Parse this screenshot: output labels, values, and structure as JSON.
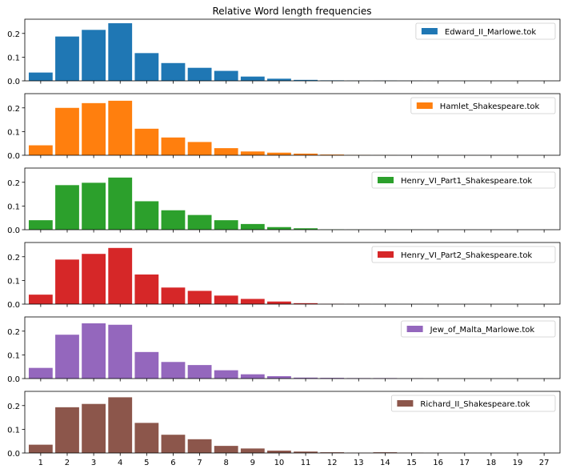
{
  "chart_data": {
    "type": "bar",
    "title": "Relative Word length frequencies",
    "categories": [
      "1",
      "2",
      "3",
      "4",
      "5",
      "6",
      "7",
      "8",
      "9",
      "10",
      "11",
      "12",
      "13",
      "14",
      "15",
      "16",
      "17",
      "18",
      "19",
      "27"
    ],
    "ylim": [
      0,
      0.26
    ],
    "yticks": [
      "0.0",
      "0.1",
      "0.2"
    ],
    "legend_position": "top-right",
    "series": [
      {
        "name": "Edward_II_Marlowe.tok",
        "color": "#1f77b4",
        "values": [
          0.035,
          0.187,
          0.215,
          0.243,
          0.117,
          0.075,
          0.055,
          0.042,
          0.018,
          0.009,
          0.004,
          0.002,
          0.001,
          0.001,
          0.0005,
          0.0003,
          0.0002,
          0.0001,
          0.0001,
          0.0001
        ]
      },
      {
        "name": "Hamlet_Shakespeare.tok",
        "color": "#ff7f0e",
        "values": [
          0.042,
          0.2,
          0.22,
          0.23,
          0.112,
          0.075,
          0.056,
          0.03,
          0.016,
          0.011,
          0.007,
          0.003,
          0.001,
          0.0005,
          0.0003,
          0.0002,
          0.0001,
          0.0001,
          0.0001,
          0.0001
        ]
      },
      {
        "name": "Henry_VI_Part1_Shakespeare.tok",
        "color": "#2ca02c",
        "values": [
          0.04,
          0.188,
          0.198,
          0.22,
          0.12,
          0.082,
          0.062,
          0.04,
          0.024,
          0.011,
          0.006,
          0.001,
          0.0005,
          0.0003,
          0.0002,
          0.0001,
          0.0001,
          0.0001,
          0.0001,
          0.0001
        ]
      },
      {
        "name": "Henry_VI_Part2_Shakespeare.tok",
        "color": "#d62728",
        "values": [
          0.04,
          0.188,
          0.212,
          0.237,
          0.125,
          0.07,
          0.056,
          0.036,
          0.022,
          0.011,
          0.004,
          0.001,
          0.0005,
          0.0003,
          0.0002,
          0.0001,
          0.0001,
          0.0001,
          0.0001,
          0.0001
        ]
      },
      {
        "name": "Jew_of_Malta_Marlowe.tok",
        "color": "#9467bd",
        "values": [
          0.045,
          0.185,
          0.233,
          0.227,
          0.112,
          0.07,
          0.057,
          0.035,
          0.018,
          0.01,
          0.004,
          0.003,
          0.002,
          0.002,
          0.001,
          0.0003,
          0.0002,
          0.0001,
          0.0001,
          0.0001
        ]
      },
      {
        "name": "Richard_II_Shakespeare.tok",
        "color": "#8c564b",
        "values": [
          0.035,
          0.193,
          0.207,
          0.235,
          0.127,
          0.077,
          0.058,
          0.03,
          0.019,
          0.01,
          0.006,
          0.003,
          0.001,
          0.003,
          0.001,
          0.0003,
          0.0002,
          0.0001,
          0.0001,
          0.0001
        ]
      }
    ]
  }
}
